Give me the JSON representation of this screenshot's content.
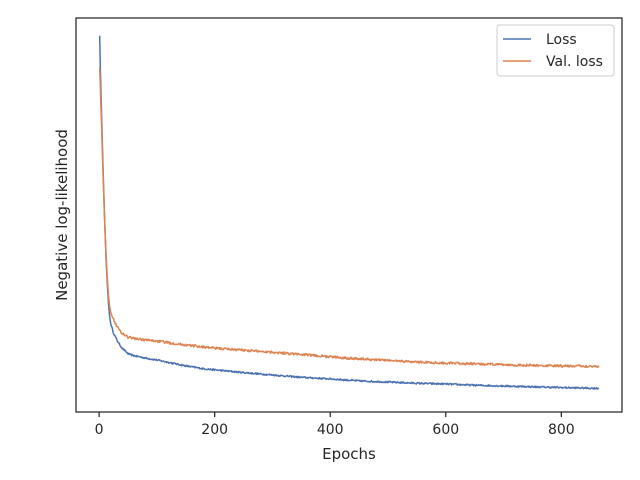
{
  "chart_data": {
    "type": "line",
    "title": "",
    "xlabel": "Epochs",
    "ylabel": "Negative log-likelihood",
    "xlim": [
      -40,
      905
    ],
    "ylim": [
      0,
      1
    ],
    "x_ticks": [
      0,
      200,
      400,
      600,
      800
    ],
    "x_tick_labels": [
      "0",
      "200",
      "400",
      "600",
      "800"
    ],
    "y_ticks_shown": false,
    "grid": false,
    "legend_position": "top-right",
    "series": [
      {
        "name": "Loss",
        "color": "#4c72b0",
        "points": [
          [
            1,
            0.955
          ],
          [
            2,
            0.88
          ],
          [
            4,
            0.77
          ],
          [
            6,
            0.66
          ],
          [
            8,
            0.56
          ],
          [
            10,
            0.47
          ],
          [
            12,
            0.39
          ],
          [
            14,
            0.33
          ],
          [
            16,
            0.28
          ],
          [
            18,
            0.245
          ],
          [
            20,
            0.225
          ],
          [
            25,
            0.2
          ],
          [
            30,
            0.185
          ],
          [
            35,
            0.172
          ],
          [
            40,
            0.162
          ],
          [
            45,
            0.155
          ],
          [
            50,
            0.148
          ],
          [
            60,
            0.143
          ],
          [
            70,
            0.14
          ],
          [
            80,
            0.137
          ],
          [
            100,
            0.132
          ],
          [
            120,
            0.126
          ],
          [
            150,
            0.117
          ],
          [
            180,
            0.11
          ],
          [
            200,
            0.107
          ],
          [
            250,
            0.1
          ],
          [
            300,
            0.094
          ],
          [
            350,
            0.088
          ],
          [
            400,
            0.084
          ],
          [
            450,
            0.079
          ],
          [
            500,
            0.076
          ],
          [
            550,
            0.073
          ],
          [
            600,
            0.071
          ],
          [
            650,
            0.068
          ],
          [
            700,
            0.066
          ],
          [
            750,
            0.064
          ],
          [
            800,
            0.062
          ],
          [
            865,
            0.06
          ]
        ],
        "noise": 0.002
      },
      {
        "name": "Val. loss",
        "color": "#dd8452",
        "points": [
          [
            1,
            0.875
          ],
          [
            2,
            0.83
          ],
          [
            4,
            0.74
          ],
          [
            6,
            0.64
          ],
          [
            8,
            0.55
          ],
          [
            10,
            0.47
          ],
          [
            12,
            0.4
          ],
          [
            14,
            0.345
          ],
          [
            16,
            0.3
          ],
          [
            18,
            0.27
          ],
          [
            20,
            0.255
          ],
          [
            25,
            0.235
          ],
          [
            30,
            0.22
          ],
          [
            35,
            0.208
          ],
          [
            40,
            0.2
          ],
          [
            45,
            0.195
          ],
          [
            50,
            0.19
          ],
          [
            60,
            0.187
          ],
          [
            80,
            0.183
          ],
          [
            100,
            0.18
          ],
          [
            150,
            0.17
          ],
          [
            200,
            0.162
          ],
          [
            250,
            0.157
          ],
          [
            300,
            0.152
          ],
          [
            350,
            0.146
          ],
          [
            400,
            0.14
          ],
          [
            450,
            0.135
          ],
          [
            500,
            0.131
          ],
          [
            550,
            0.127
          ],
          [
            600,
            0.124
          ],
          [
            650,
            0.122
          ],
          [
            700,
            0.12
          ],
          [
            750,
            0.118
          ],
          [
            800,
            0.117
          ],
          [
            865,
            0.116
          ]
        ],
        "noise": 0.003
      }
    ]
  }
}
